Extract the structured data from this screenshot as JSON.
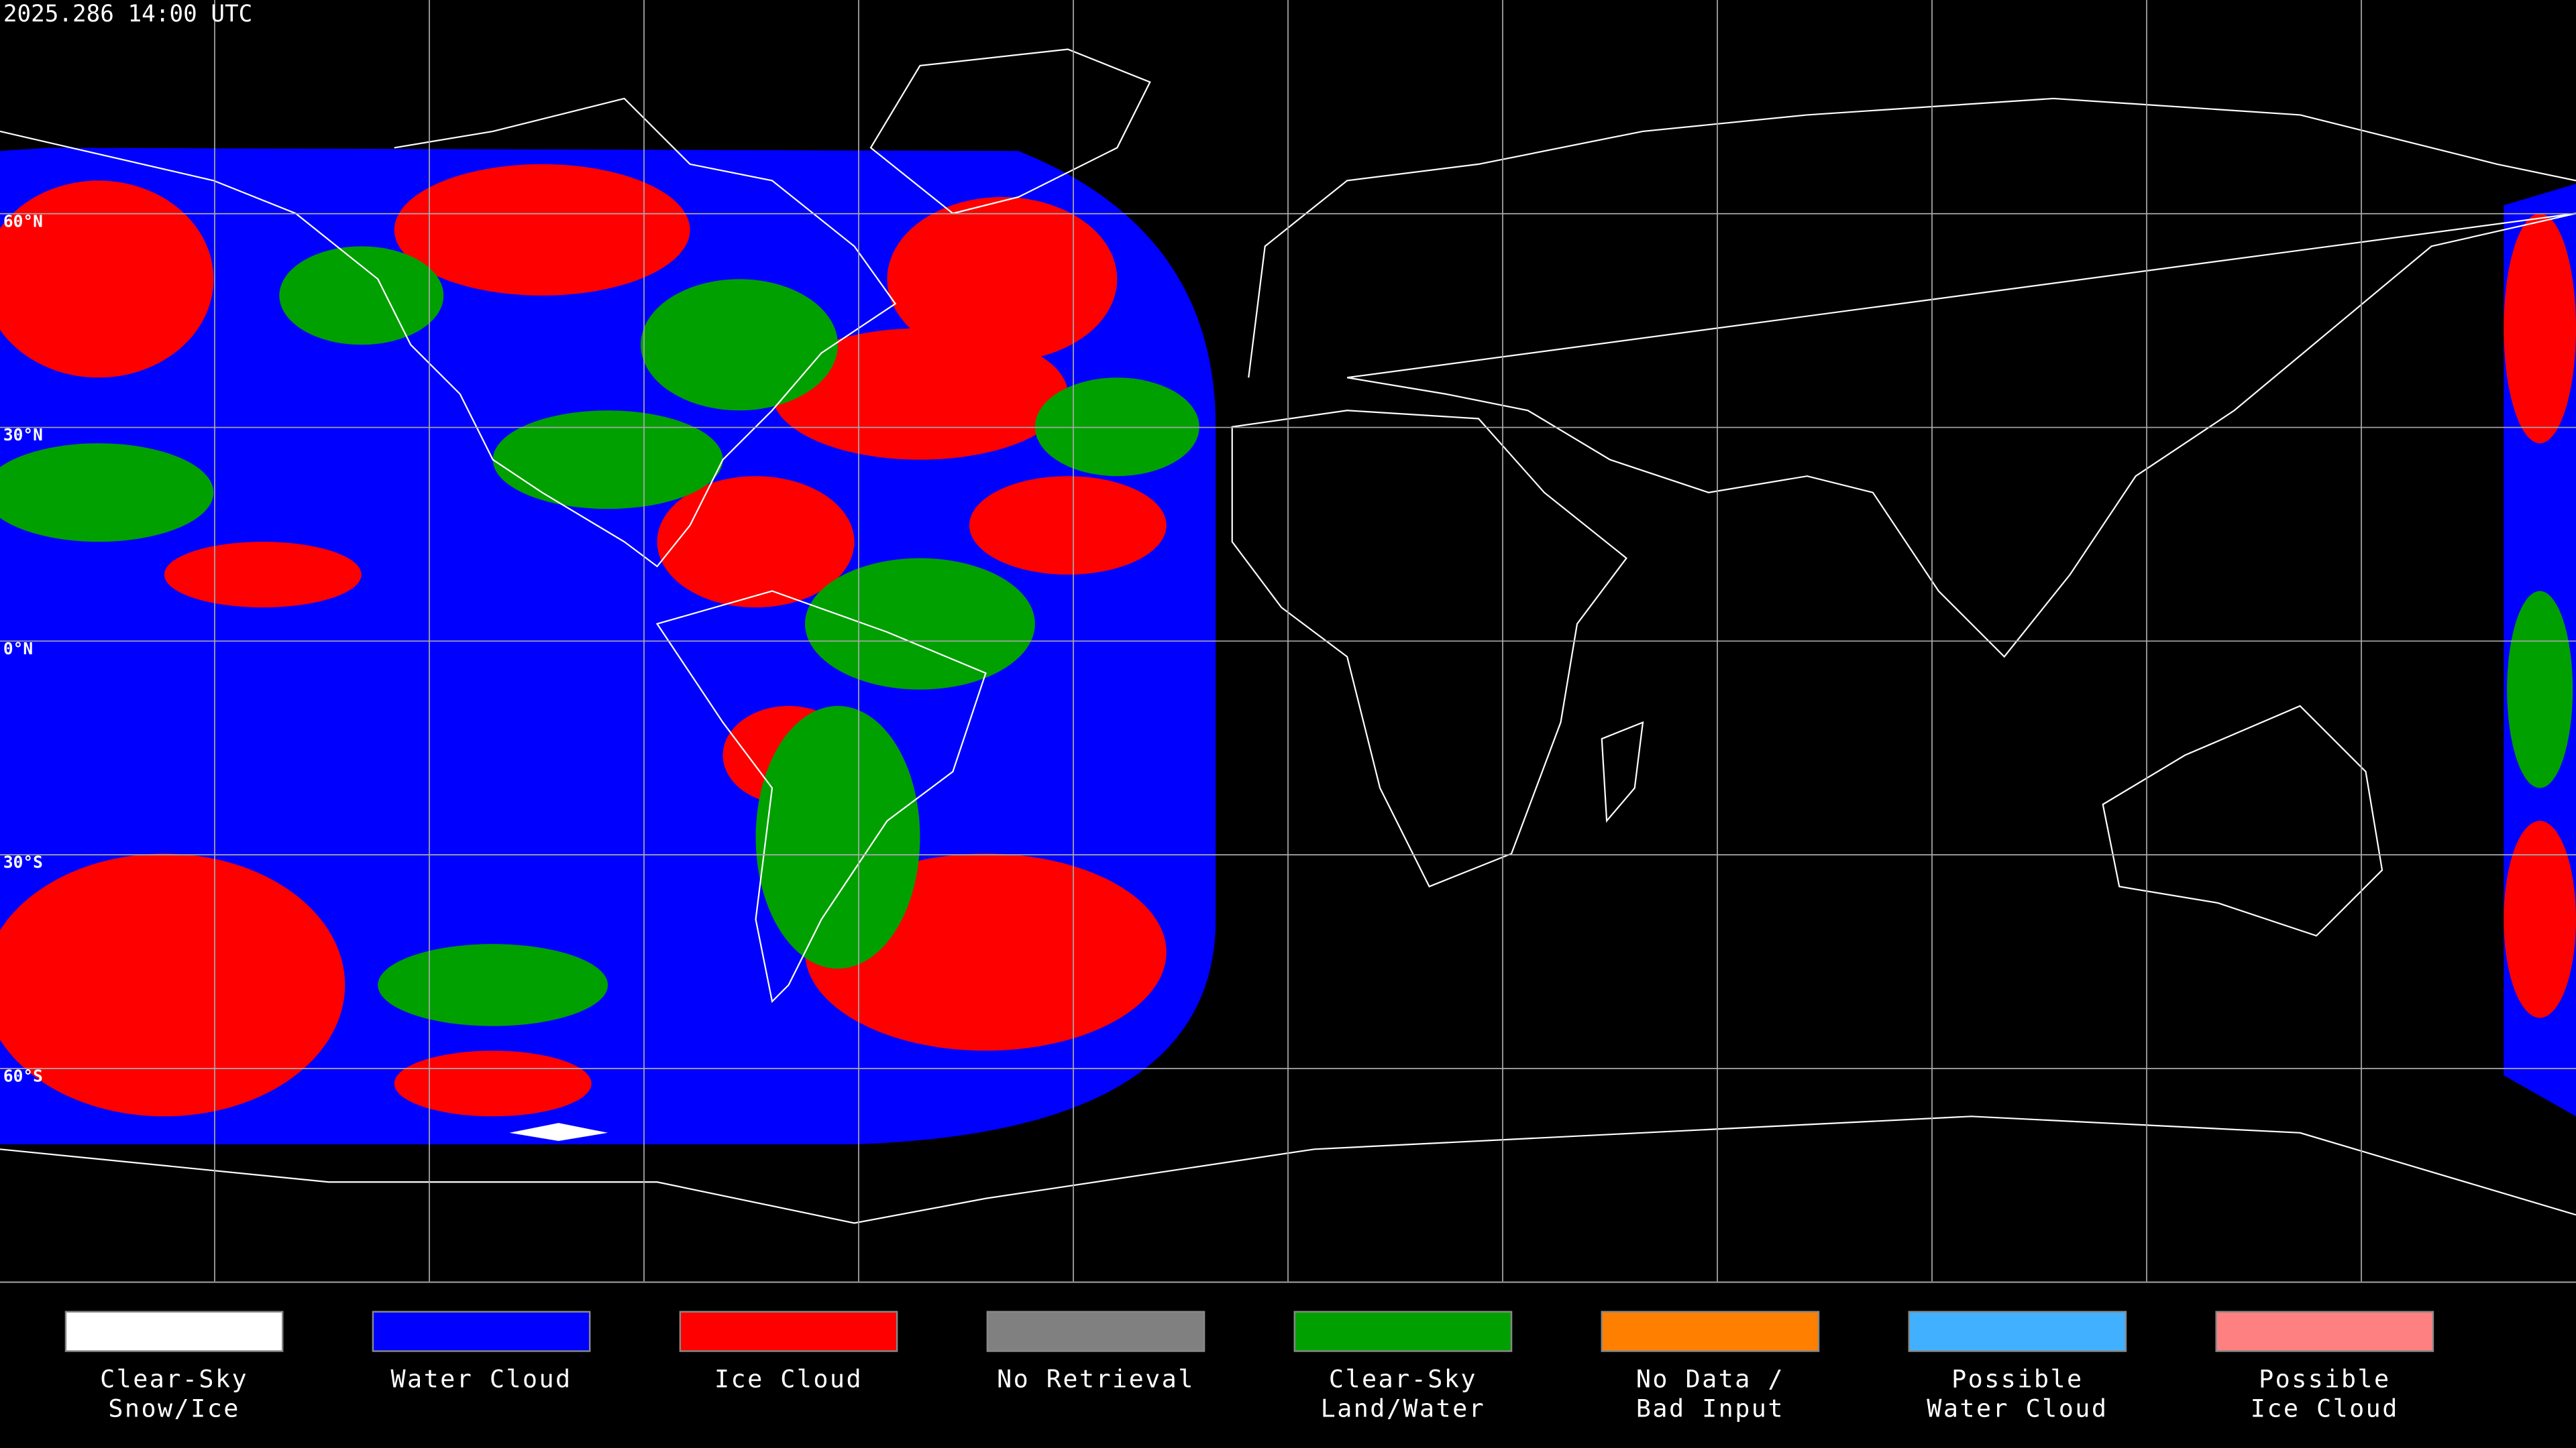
{
  "map": {
    "timestamp": "2025.286 14:00 UTC",
    "latitude_labels": [
      "60°N",
      "30°N",
      "0°N",
      "30°S",
      "60°S"
    ]
  },
  "legend": [
    {
      "label": [
        "Clear-Sky",
        "Snow/Ice"
      ],
      "color": "#ffffff"
    },
    {
      "label": [
        "Water Cloud"
      ],
      "color": "#0000ff"
    },
    {
      "label": [
        "Ice Cloud"
      ],
      "color": "#ff0000"
    },
    {
      "label": [
        "No Retrieval"
      ],
      "color": "#808080"
    },
    {
      "label": [
        "Clear-Sky",
        "Land/Water"
      ],
      "color": "#00a000"
    },
    {
      "label": [
        "No Data /",
        "Bad Input"
      ],
      "color": "#ff8000"
    },
    {
      "label": [
        "Possible",
        "Water Cloud"
      ],
      "color": "#40b0ff"
    },
    {
      "label": [
        "Possible",
        "Ice Cloud"
      ],
      "color": "#ff8080"
    }
  ]
}
